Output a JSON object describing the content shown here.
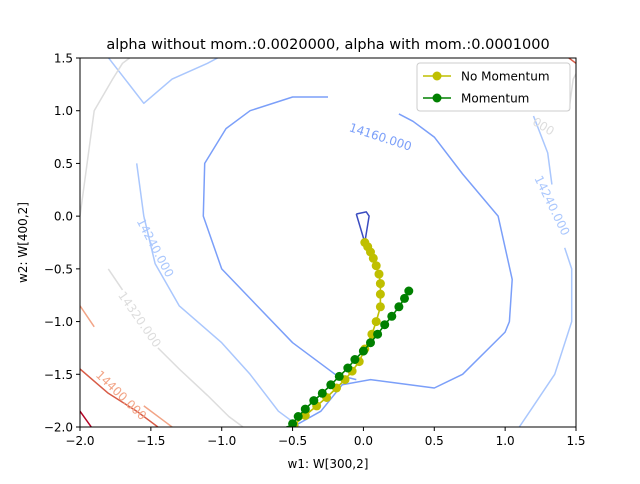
{
  "chart_data": {
    "type": "contour-line",
    "title": "alpha without mom.:0.0020000, alpha with mom.:0.0001000",
    "xlabel": "w1: W[300,2]",
    "ylabel": "w2: W[400,2]",
    "xlim": [
      -2.0,
      1.5
    ],
    "ylim": [
      -2.0,
      1.5
    ],
    "xticks": [
      "−2.0",
      "−1.5",
      "−1.0",
      "−0.5",
      "0.0",
      "0.5",
      "1.0",
      "1.5"
    ],
    "yticks": [
      "−2.0",
      "−1.5",
      "−1.0",
      "−0.5",
      "0.0",
      "0.5",
      "1.0",
      "1.5"
    ],
    "grid": false,
    "legend_position": "top-right",
    "colors": {
      "innermost": "#3b4cc0",
      "c14160": "#7b9ff9",
      "c14240": "#aac7fd",
      "c14320": "#dddddd",
      "c14400": "#f2a486",
      "c14480": "#d85c47",
      "outer": "#b40426",
      "no_momentum": "#bfbf00",
      "momentum": "#008000"
    },
    "contour_labels": [
      {
        "text": "14160.000",
        "x": 0.12,
        "y": 0.75,
        "rot": 18,
        "level": "c14160"
      },
      {
        "text": "14240.000",
        "x": 1.33,
        "y": 0.1,
        "rot": 64,
        "level": "c14240"
      },
      {
        "text": "14240.000",
        "x": -1.47,
        "y": -0.3,
        "rot": 62,
        "level": "c14240"
      },
      {
        "text": "14320.000",
        "x": -1.58,
        "y": -0.98,
        "rot": 55,
        "level": "c14320"
      },
      {
        "text": "14400.000",
        "x": -1.71,
        "y": -1.7,
        "rot": 44,
        "level": "c14400"
      },
      {
        "text": "000",
        "x": 1.27,
        "y": 0.85,
        "rot": 32,
        "level": "c14320"
      }
    ],
    "contours": [
      {
        "level": "innermost",
        "points": [
          [
            -0.05,
            0.02
          ],
          [
            0.02,
            0.04
          ],
          [
            0.04,
            0.0
          ],
          [
            0.01,
            -0.25
          ],
          [
            -0.05,
            0.02
          ]
        ]
      },
      {
        "level": "c14160",
        "points": [
          [
            -0.5,
            -2.0
          ],
          [
            -0.3,
            -1.85
          ],
          [
            -0.15,
            -1.6
          ],
          [
            0.05,
            -1.55
          ],
          [
            0.5,
            -1.63
          ],
          [
            0.7,
            -1.5
          ],
          [
            1.0,
            -1.1
          ],
          [
            1.03,
            -1.0
          ],
          [
            1.05,
            -0.6
          ],
          [
            0.95,
            0.0
          ],
          [
            0.7,
            0.4
          ],
          [
            0.5,
            0.75
          ],
          [
            0.35,
            0.9
          ],
          [
            0.25,
            0.97
          ]
        ]
      },
      {
        "level": "c14160",
        "points": [
          [
            -0.25,
            1.13
          ],
          [
            -0.5,
            1.13
          ],
          [
            -0.8,
            1.0
          ],
          [
            -0.97,
            0.83
          ],
          [
            -1.12,
            0.5
          ],
          [
            -1.13,
            0.0
          ],
          [
            -1.0,
            -0.5
          ],
          [
            -0.5,
            -1.2
          ],
          [
            -0.2,
            -1.5
          ],
          [
            -0.05,
            -1.55
          ]
        ]
      },
      {
        "level": "c14240",
        "points": [
          [
            -2.0,
            1.85
          ],
          [
            -1.55,
            1.07
          ],
          [
            -1.35,
            1.3
          ],
          [
            -1.1,
            1.45
          ],
          [
            -1.03,
            1.5
          ]
        ]
      },
      {
        "level": "c14240",
        "points": [
          [
            -1.6,
            0.5
          ],
          [
            -1.55,
            0.0
          ],
          [
            -1.47,
            -0.45
          ],
          [
            -1.3,
            -0.85
          ],
          [
            -1.0,
            -1.2
          ],
          [
            -0.8,
            -1.5
          ],
          [
            -0.6,
            -1.85
          ],
          [
            -0.5,
            -1.95
          ],
          [
            -0.45,
            -2.0
          ]
        ]
      },
      {
        "level": "c14240",
        "points": [
          [
            1.2,
            0.95
          ],
          [
            1.3,
            0.6
          ],
          [
            1.33,
            0.3
          ]
        ]
      },
      {
        "level": "c14240",
        "points": [
          [
            1.42,
            -0.3
          ],
          [
            1.47,
            -0.5
          ],
          [
            1.47,
            -1.0
          ],
          [
            1.35,
            -1.5
          ],
          [
            1.2,
            -1.8
          ],
          [
            1.1,
            -2.0
          ]
        ]
      },
      {
        "level": "c14320",
        "points": [
          [
            -2.0,
            0.0
          ],
          [
            -1.95,
            0.5
          ],
          [
            -1.9,
            1.0
          ],
          [
            -1.77,
            1.3
          ],
          [
            -1.7,
            1.45
          ],
          [
            -1.65,
            1.5
          ]
        ]
      },
      {
        "level": "c14320",
        "points": [
          [
            -1.8,
            -0.5
          ],
          [
            -1.7,
            -0.7
          ]
        ]
      },
      {
        "level": "c14320",
        "points": [
          [
            -1.45,
            -1.25
          ],
          [
            -1.3,
            -1.45
          ],
          [
            -1.1,
            -1.7
          ],
          [
            -0.95,
            -1.9
          ],
          [
            -0.85,
            -2.0
          ]
        ]
      },
      {
        "level": "c14320",
        "points": [
          [
            1.45,
            1.0
          ],
          [
            1.48,
            1.3
          ],
          [
            1.5,
            1.35
          ]
        ]
      },
      {
        "level": "c14400",
        "points": [
          [
            -2.0,
            -0.85
          ],
          [
            -1.9,
            -1.05
          ]
        ]
      },
      {
        "level": "c14400",
        "points": [
          [
            -1.55,
            -1.8
          ],
          [
            -1.4,
            -1.95
          ],
          [
            -1.35,
            -2.0
          ]
        ]
      },
      {
        "level": "c14480",
        "points": [
          [
            -2.0,
            -1.45
          ],
          [
            -1.8,
            -1.68
          ],
          [
            -1.6,
            -1.85
          ],
          [
            -1.45,
            -2.0
          ]
        ]
      },
      {
        "level": "c14480",
        "points": [
          [
            1.45,
            1.5
          ],
          [
            1.5,
            1.45
          ]
        ]
      },
      {
        "level": "outer",
        "points": [
          [
            -2.0,
            -1.85
          ],
          [
            -1.92,
            -2.0
          ]
        ]
      }
    ],
    "series": [
      {
        "name": "No Momentum",
        "color": "no_momentum",
        "points": [
          [
            0.01,
            -0.25
          ],
          [
            0.03,
            -0.29
          ],
          [
            0.05,
            -0.34
          ],
          [
            0.07,
            -0.4
          ],
          [
            0.09,
            -0.47
          ],
          [
            0.11,
            -0.55
          ],
          [
            0.12,
            -0.64
          ],
          [
            0.12,
            -0.74
          ],
          [
            0.12,
            -0.86
          ],
          [
            0.09,
            -1.0
          ],
          [
            0.06,
            -1.12
          ],
          [
            0.01,
            -1.26
          ],
          [
            -0.03,
            -1.38
          ],
          [
            -0.08,
            -1.47
          ],
          [
            -0.13,
            -1.55
          ],
          [
            -0.19,
            -1.63
          ],
          [
            -0.26,
            -1.72
          ],
          [
            -0.33,
            -1.8
          ],
          [
            -0.41,
            -1.89
          ],
          [
            -0.49,
            -1.98
          ]
        ]
      },
      {
        "name": "Momentum",
        "color": "momentum",
        "points": [
          [
            0.32,
            -0.71
          ],
          [
            0.29,
            -0.78
          ],
          [
            0.25,
            -0.86
          ],
          [
            0.2,
            -0.95
          ],
          [
            0.15,
            -1.03
          ],
          [
            0.1,
            -1.12
          ],
          [
            0.05,
            -1.2
          ],
          [
            0.0,
            -1.28
          ],
          [
            -0.06,
            -1.36
          ],
          [
            -0.11,
            -1.44
          ],
          [
            -0.17,
            -1.52
          ],
          [
            -0.23,
            -1.6
          ],
          [
            -0.29,
            -1.68
          ],
          [
            -0.35,
            -1.75
          ],
          [
            -0.41,
            -1.83
          ],
          [
            -0.46,
            -1.9
          ],
          [
            -0.5,
            -1.97
          ],
          [
            -0.53,
            -2.03
          ]
        ]
      }
    ]
  }
}
